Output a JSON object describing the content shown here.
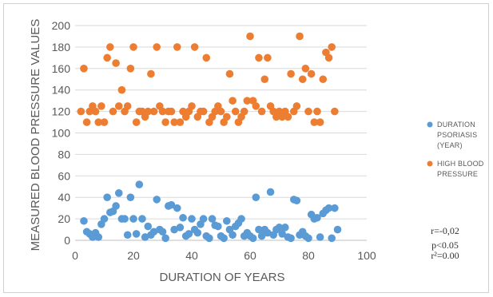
{
  "chart_data": {
    "type": "scatter",
    "title": "",
    "xlabel": "DURATION OF YEARS",
    "ylabel": "MEASURED BLOOD PRESSURE VALUES",
    "xlim": [
      0,
      100
    ],
    "ylim": [
      0,
      200
    ],
    "x_ticks": [
      "0",
      "20",
      "40",
      "60",
      "80",
      "100"
    ],
    "y_ticks": [
      "0",
      "20",
      "40",
      "60",
      "80",
      "100",
      "120",
      "140",
      "160",
      "180",
      "200"
    ],
    "grid": "horizontal",
    "legend_position": "right",
    "series": [
      {
        "name": "DURATION PSORIASIS (YEAR)",
        "legend_lines": [
          "DURATION",
          "PSORIASIS",
          "(YEAR)"
        ],
        "color": "#5b9bd5",
        "points": [
          [
            3,
            18
          ],
          [
            4,
            8
          ],
          [
            5,
            6
          ],
          [
            6,
            3
          ],
          [
            7,
            7
          ],
          [
            8,
            3
          ],
          [
            9,
            15
          ],
          [
            10,
            20
          ],
          [
            11,
            40
          ],
          [
            12,
            26
          ],
          [
            13,
            27
          ],
          [
            14,
            32
          ],
          [
            15,
            44
          ],
          [
            16,
            20
          ],
          [
            17,
            20
          ],
          [
            18,
            5
          ],
          [
            19,
            40
          ],
          [
            20,
            20
          ],
          [
            21,
            6
          ],
          [
            22,
            52
          ],
          [
            23,
            20
          ],
          [
            24,
            3
          ],
          [
            25,
            13
          ],
          [
            26,
            5
          ],
          [
            27,
            8
          ],
          [
            28,
            38
          ],
          [
            29,
            10
          ],
          [
            30,
            8
          ],
          [
            31,
            2
          ],
          [
            32,
            32
          ],
          [
            33,
            33
          ],
          [
            34,
            10
          ],
          [
            35,
            30
          ],
          [
            36,
            12
          ],
          [
            37,
            21
          ],
          [
            38,
            4
          ],
          [
            39,
            6
          ],
          [
            40,
            20
          ],
          [
            41,
            10
          ],
          [
            42,
            7
          ],
          [
            43,
            15
          ],
          [
            44,
            20
          ],
          [
            45,
            4
          ],
          [
            46,
            2
          ],
          [
            47,
            20
          ],
          [
            48,
            14
          ],
          [
            49,
            13
          ],
          [
            50,
            4
          ],
          [
            51,
            2
          ],
          [
            52,
            18
          ],
          [
            53,
            10
          ],
          [
            54,
            5
          ],
          [
            55,
            13
          ],
          [
            56,
            16
          ],
          [
            57,
            20
          ],
          [
            58,
            4
          ],
          [
            59,
            7
          ],
          [
            60,
            4
          ],
          [
            61,
            2
          ],
          [
            62,
            40
          ],
          [
            63,
            10
          ],
          [
            64,
            4
          ],
          [
            65,
            10
          ],
          [
            66,
            7
          ],
          [
            67,
            45
          ],
          [
            68,
            5
          ],
          [
            69,
            10
          ],
          [
            70,
            12
          ],
          [
            71,
            6
          ],
          [
            72,
            12
          ],
          [
            73,
            3
          ],
          [
            74,
            2
          ],
          [
            75,
            38
          ],
          [
            76,
            37
          ],
          [
            77,
            5
          ],
          [
            78,
            8
          ],
          [
            79,
            4
          ],
          [
            80,
            2
          ],
          [
            81,
            24
          ],
          [
            82,
            20
          ],
          [
            83,
            21
          ],
          [
            84,
            3
          ],
          [
            85,
            25
          ],
          [
            86,
            28
          ],
          [
            87,
            30
          ],
          [
            88,
            2
          ],
          [
            89,
            30
          ],
          [
            90,
            10
          ]
        ]
      },
      {
        "name": "HIGH BLOOD PRESSURE",
        "legend_lines": [
          "HIGH BLOOD",
          "PRESSURE"
        ],
        "color": "#ed7d31",
        "points": [
          [
            2,
            120
          ],
          [
            3,
            160
          ],
          [
            4,
            110
          ],
          [
            5,
            120
          ],
          [
            6,
            125
          ],
          [
            7,
            120
          ],
          [
            8,
            110
          ],
          [
            9,
            125
          ],
          [
            10,
            110
          ],
          [
            11,
            170
          ],
          [
            12,
            180
          ],
          [
            13,
            120
          ],
          [
            14,
            165
          ],
          [
            15,
            125
          ],
          [
            16,
            140
          ],
          [
            17,
            120
          ],
          [
            18,
            125
          ],
          [
            19,
            160
          ],
          [
            20,
            180
          ],
          [
            21,
            110
          ],
          [
            22,
            120
          ],
          [
            23,
            120
          ],
          [
            24,
            115
          ],
          [
            25,
            120
          ],
          [
            26,
            155
          ],
          [
            27,
            120
          ],
          [
            28,
            180
          ],
          [
            29,
            125
          ],
          [
            30,
            120
          ],
          [
            31,
            110
          ],
          [
            32,
            120
          ],
          [
            33,
            120
          ],
          [
            34,
            110
          ],
          [
            35,
            180
          ],
          [
            36,
            110
          ],
          [
            37,
            120
          ],
          [
            38,
            115
          ],
          [
            39,
            120
          ],
          [
            40,
            125
          ],
          [
            41,
            180
          ],
          [
            42,
            115
          ],
          [
            43,
            120
          ],
          [
            44,
            120
          ],
          [
            45,
            170
          ],
          [
            46,
            110
          ],
          [
            47,
            115
          ],
          [
            48,
            120
          ],
          [
            49,
            125
          ],
          [
            50,
            120
          ],
          [
            51,
            110
          ],
          [
            52,
            115
          ],
          [
            53,
            155
          ],
          [
            54,
            130
          ],
          [
            55,
            120
          ],
          [
            56,
            110
          ],
          [
            57,
            115
          ],
          [
            58,
            120
          ],
          [
            59,
            130
          ],
          [
            60,
            190
          ],
          [
            61,
            130
          ],
          [
            62,
            125
          ],
          [
            63,
            170
          ],
          [
            64,
            120
          ],
          [
            65,
            150
          ],
          [
            66,
            170
          ],
          [
            67,
            125
          ],
          [
            68,
            120
          ],
          [
            69,
            115
          ],
          [
            70,
            120
          ],
          [
            71,
            115
          ],
          [
            72,
            120
          ],
          [
            73,
            115
          ],
          [
            74,
            155
          ],
          [
            75,
            120
          ],
          [
            76,
            125
          ],
          [
            77,
            190
          ],
          [
            78,
            150
          ],
          [
            79,
            160
          ],
          [
            80,
            120
          ],
          [
            81,
            155
          ],
          [
            82,
            110
          ],
          [
            83,
            120
          ],
          [
            84,
            110
          ],
          [
            85,
            150
          ],
          [
            86,
            175
          ],
          [
            87,
            170
          ],
          [
            88,
            180
          ],
          [
            89,
            120
          ]
        ]
      }
    ],
    "annotations": [
      "r=-0,02",
      "p<0.05",
      "r²=0.00"
    ]
  }
}
